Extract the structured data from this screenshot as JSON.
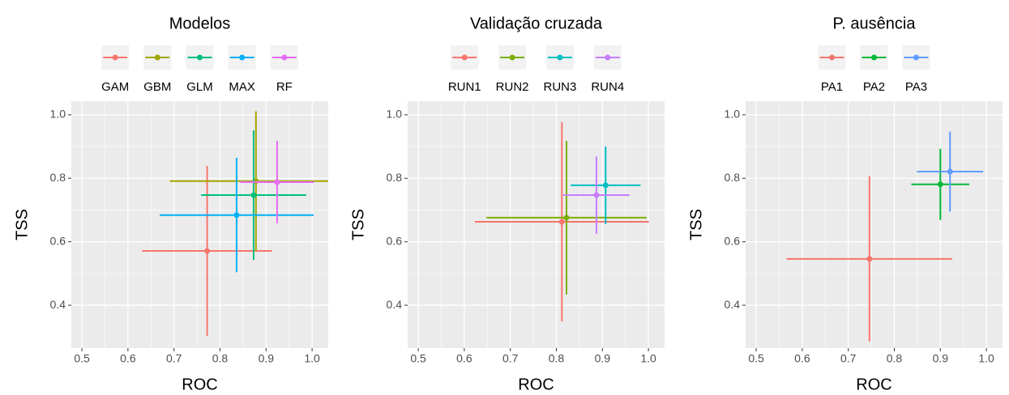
{
  "chart_data": [
    {
      "type": "scatter",
      "title": "Modelos",
      "xlabel": "ROC",
      "ylabel": "TSS",
      "xlim": [
        0.477,
        1.035
      ],
      "ylim": [
        0.265,
        1.043
      ],
      "xticks": [
        0.5,
        0.6,
        0.7,
        0.8,
        0.9,
        {
          "value": 1,
          "label": "1.0"
        }
      ],
      "yticks": [
        0.4,
        0.6,
        0.8,
        {
          "value": 1,
          "label": "1.0"
        }
      ],
      "grid": true,
      "series": [
        {
          "name": "GAM",
          "color": "#F8766D",
          "x": [
            0.772
          ],
          "values": [
            0.571
          ],
          "xerr": [
            0.141
          ],
          "yerr": [
            0.268
          ]
        },
        {
          "name": "GBM",
          "color": "#A3A500",
          "x": [
            0.878
          ],
          "values": [
            0.791
          ],
          "xerr": [
            0.187
          ],
          "yerr": [
            0.22
          ]
        },
        {
          "name": "GLM",
          "color": "#00BF7D",
          "x": [
            0.873
          ],
          "values": [
            0.747
          ],
          "xerr": [
            0.114
          ],
          "yerr": [
            0.204
          ]
        },
        {
          "name": "MAX",
          "color": "#00B0F6",
          "x": [
            0.836
          ],
          "values": [
            0.684
          ],
          "xerr": [
            0.167
          ],
          "yerr": [
            0.18
          ]
        },
        {
          "name": "RF",
          "color": "#E76BF3",
          "x": [
            0.924
          ],
          "values": [
            0.788
          ],
          "xerr": [
            0.08
          ],
          "yerr": [
            0.13
          ]
        }
      ]
    },
    {
      "type": "scatter",
      "title": "Validação cruzada",
      "xlabel": "ROC",
      "ylabel": "TSS",
      "xlim": [
        0.477,
        1.035
      ],
      "ylim": [
        0.265,
        1.043
      ],
      "xticks": [
        0.5,
        0.6,
        0.7,
        0.8,
        0.9,
        {
          "value": 1,
          "label": "1.0"
        }
      ],
      "yticks": [
        0.4,
        0.6,
        0.8,
        {
          "value": 1,
          "label": "1.0"
        }
      ],
      "grid": true,
      "series": [
        {
          "name": "RUN1",
          "color": "#F8766D",
          "x": [
            0.812
          ],
          "values": [
            0.663
          ],
          "xerr": [
            0.189
          ],
          "yerr": [
            0.314
          ]
        },
        {
          "name": "RUN2",
          "color": "#7CAE00",
          "x": [
            0.822
          ],
          "values": [
            0.676
          ],
          "xerr": [
            0.174
          ],
          "yerr": [
            0.242
          ]
        },
        {
          "name": "RUN3",
          "color": "#00BFC4",
          "x": [
            0.907
          ],
          "values": [
            0.778
          ],
          "xerr": [
            0.076
          ],
          "yerr": [
            0.122
          ]
        },
        {
          "name": "RUN4",
          "color": "#C77CFF",
          "x": [
            0.887
          ],
          "values": [
            0.747
          ],
          "xerr": [
            0.072
          ],
          "yerr": [
            0.122
          ]
        }
      ]
    },
    {
      "type": "scatter",
      "title": "P. ausência",
      "xlabel": "ROC",
      "ylabel": "TSS",
      "xlim": [
        0.477,
        1.035
      ],
      "ylim": [
        0.265,
        1.043
      ],
      "xticks": [
        0.5,
        0.6,
        0.7,
        0.8,
        0.9,
        {
          "value": 1,
          "label": "1.0"
        }
      ],
      "yticks": [
        0.4,
        0.6,
        0.8,
        {
          "value": 1,
          "label": "1.0"
        }
      ],
      "grid": true,
      "series": [
        {
          "name": "PA1",
          "color": "#F8766D",
          "x": [
            0.746
          ],
          "values": [
            0.546
          ],
          "xerr": [
            0.18
          ],
          "yerr": [
            0.26
          ]
        },
        {
          "name": "PA2",
          "color": "#00BA38",
          "x": [
            0.9
          ],
          "values": [
            0.781
          ],
          "xerr": [
            0.063
          ],
          "yerr": [
            0.112
          ]
        },
        {
          "name": "PA3",
          "color": "#619CFF",
          "x": [
            0.921
          ],
          "values": [
            0.821
          ],
          "xerr": [
            0.072
          ],
          "yerr": [
            0.126
          ]
        }
      ]
    }
  ]
}
